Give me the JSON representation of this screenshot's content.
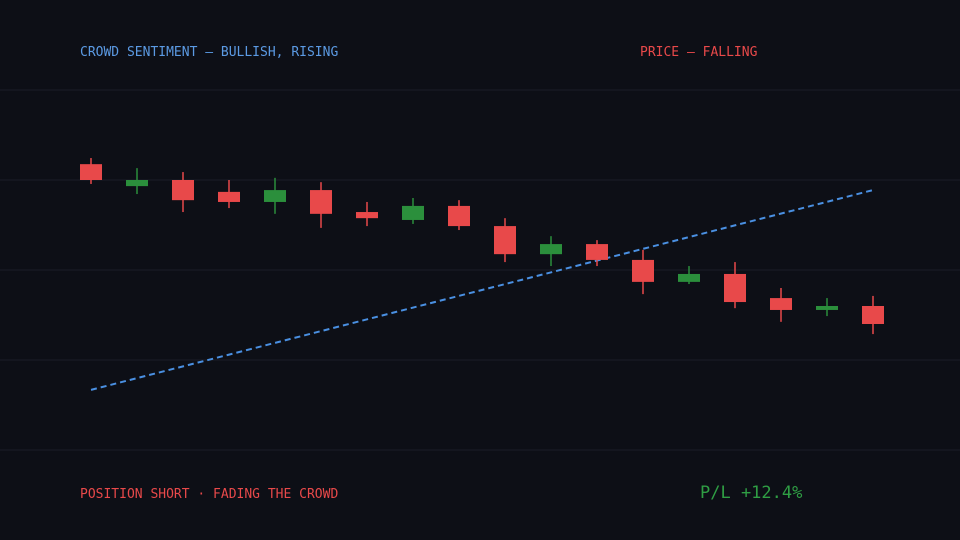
{
  "labels": {
    "sentiment": "CROWD SENTIMENT — BULLISH, RISING",
    "price": "PRICE — FALLING",
    "position": "POSITION SHORT · FADING THE CROWD",
    "pl": "P/L +12.4%"
  },
  "colors": {
    "background": "#0d0f16",
    "grid": "#1b1e28",
    "up": "#2b8f3c",
    "down": "#e8494a",
    "sentiment_line": "#4a90e2",
    "sentiment_text": "#5b9ae3",
    "pl_text": "#2f9e44"
  },
  "chart_data": {
    "type": "candlestick",
    "grid": true,
    "ylim": [
      0,
      100
    ],
    "candles": [
      {
        "open": 79.4,
        "close": 75.0,
        "high": 81.1,
        "low": 73.9,
        "dir": "down"
      },
      {
        "open": 73.3,
        "close": 75.0,
        "high": 78.3,
        "low": 71.1,
        "dir": "up"
      },
      {
        "open": 75.0,
        "close": 69.4,
        "high": 77.2,
        "low": 66.1,
        "dir": "down"
      },
      {
        "open": 71.7,
        "close": 68.9,
        "high": 75.0,
        "low": 67.2,
        "dir": "down"
      },
      {
        "open": 68.9,
        "close": 72.2,
        "high": 75.6,
        "low": 65.6,
        "dir": "up"
      },
      {
        "open": 72.2,
        "close": 65.6,
        "high": 74.4,
        "low": 61.7,
        "dir": "down"
      },
      {
        "open": 66.1,
        "close": 64.4,
        "high": 68.9,
        "low": 62.2,
        "dir": "down"
      },
      {
        "open": 63.9,
        "close": 67.8,
        "high": 70.0,
        "low": 62.8,
        "dir": "up"
      },
      {
        "open": 67.8,
        "close": 62.2,
        "high": 69.4,
        "low": 61.1,
        "dir": "down"
      },
      {
        "open": 62.2,
        "close": 54.4,
        "high": 64.4,
        "low": 52.2,
        "dir": "down"
      },
      {
        "open": 54.4,
        "close": 57.2,
        "high": 59.4,
        "low": 51.1,
        "dir": "up"
      },
      {
        "open": 57.2,
        "close": 52.8,
        "high": 58.3,
        "low": 51.1,
        "dir": "down"
      },
      {
        "open": 52.8,
        "close": 46.7,
        "high": 55.6,
        "low": 43.3,
        "dir": "down"
      },
      {
        "open": 46.7,
        "close": 48.9,
        "high": 51.1,
        "low": 46.1,
        "dir": "up"
      },
      {
        "open": 48.9,
        "close": 41.1,
        "high": 52.2,
        "low": 39.4,
        "dir": "down"
      },
      {
        "open": 42.2,
        "close": 38.9,
        "high": 45.0,
        "low": 35.6,
        "dir": "down"
      },
      {
        "open": 38.9,
        "close": 40.0,
        "high": 42.2,
        "low": 37.2,
        "dir": "up"
      },
      {
        "open": 40.0,
        "close": 35.0,
        "high": 42.8,
        "low": 32.2,
        "dir": "down"
      }
    ],
    "sentiment_line": {
      "style": "dashed",
      "start": 16.7,
      "end": 72.2
    }
  }
}
